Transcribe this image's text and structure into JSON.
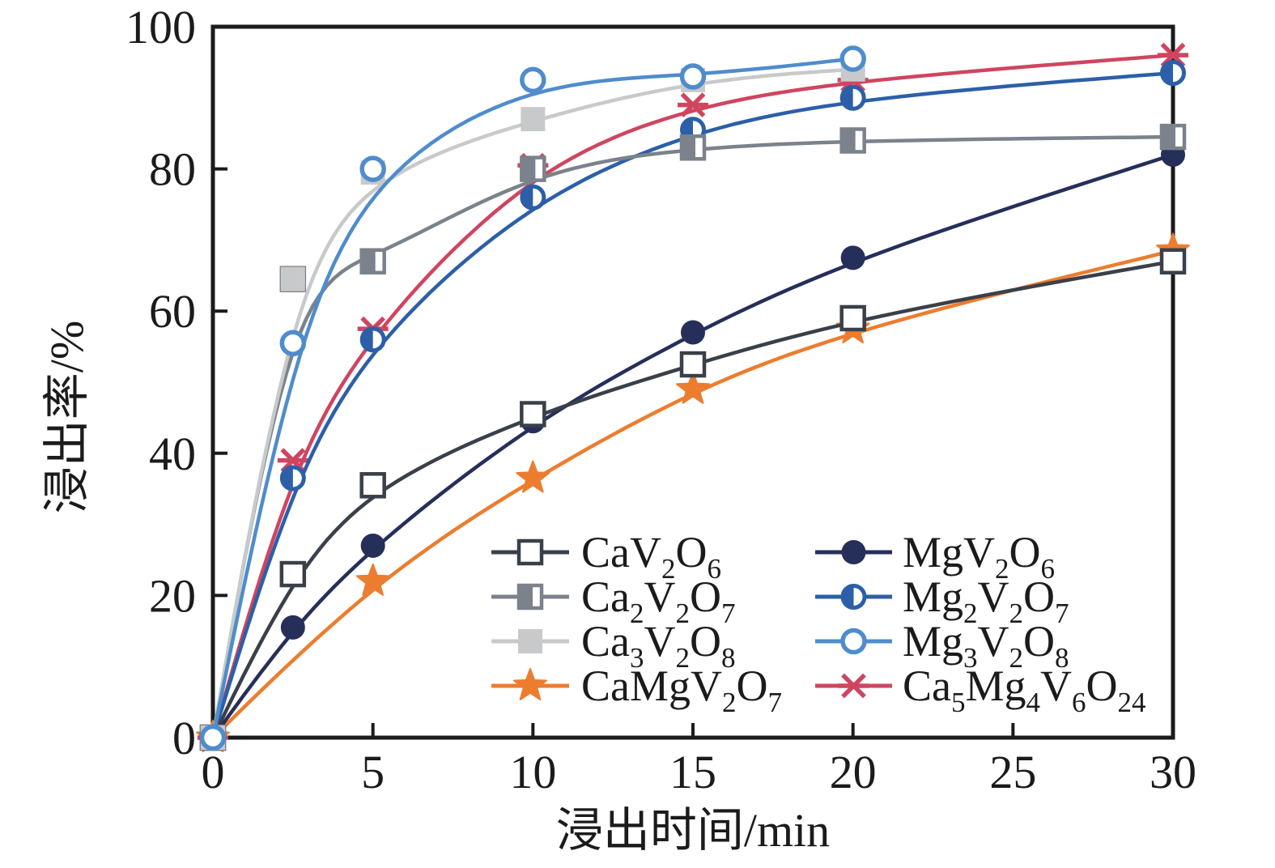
{
  "figure": {
    "background": "#ffffff",
    "frame_color": "#1b1b1b",
    "text_color": "#1b1b1b"
  },
  "axes": {
    "x": {
      "label": "浸出时间/min",
      "min": 0,
      "max": 30,
      "ticks": [
        "0",
        "5",
        "10",
        "15",
        "20",
        "25",
        "30"
      ]
    },
    "y": {
      "label": "浸出率/%",
      "min": 0,
      "max": 100,
      "ticks": [
        "0",
        "20",
        "40",
        "60",
        "80",
        "100"
      ]
    }
  },
  "chart_data": {
    "type": "line",
    "title": "",
    "xlabel": "浸出时间/min",
    "ylabel": "浸出率/%",
    "xlim": [
      0,
      30
    ],
    "ylim": [
      0,
      100
    ],
    "grid": false,
    "legend_position": "inside lower-right, two columns, no border",
    "x_tick_values": [
      0,
      5,
      10,
      15,
      20,
      25,
      30
    ],
    "y_tick_values": [
      0,
      20,
      40,
      60,
      80,
      100
    ],
    "series": [
      {
        "name": "CaV2O6",
        "formula": [
          [
            "CaV",
            0
          ],
          [
            "2",
            1
          ],
          [
            "O",
            0
          ],
          [
            "6",
            1
          ]
        ],
        "color": "#3a4049",
        "marker": "square-open",
        "x": [
          0,
          2.5,
          5,
          10,
          15,
          20,
          30
        ],
        "y": [
          0,
          23,
          35.5,
          45.5,
          52.5,
          59,
          67
        ]
      },
      {
        "name": "MgV2O6",
        "formula": [
          [
            "MgV",
            0
          ],
          [
            "2",
            1
          ],
          [
            "O",
            0
          ],
          [
            "6",
            1
          ]
        ],
        "color": "#262f5a",
        "marker": "circle-filled",
        "x": [
          0,
          2.5,
          5,
          10,
          15,
          20,
          30
        ],
        "y": [
          0,
          15.5,
          27,
          44.5,
          57,
          67.5,
          82
        ]
      },
      {
        "name": "Ca2V2O7",
        "formula": [
          [
            "Ca",
            0
          ],
          [
            "2",
            1
          ],
          [
            "V",
            0
          ],
          [
            "2",
            1
          ],
          [
            "O",
            0
          ],
          [
            "7",
            1
          ]
        ],
        "color": "#7b828b",
        "marker": "square-half",
        "x": [
          0,
          2.5,
          5,
          10,
          15,
          20,
          30
        ],
        "y": [
          0,
          64.5,
          67,
          80,
          83,
          84,
          84.5
        ]
      },
      {
        "name": "Mg2V2O7",
        "formula": [
          [
            "Mg",
            0
          ],
          [
            "2",
            1
          ],
          [
            "V",
            0
          ],
          [
            "2",
            1
          ],
          [
            "O",
            0
          ],
          [
            "7",
            1
          ]
        ],
        "color": "#2c5fa8",
        "marker": "circle-half",
        "x": [
          0,
          2.5,
          5,
          10,
          15,
          20,
          30
        ],
        "y": [
          0,
          36.5,
          56,
          76,
          85.5,
          90,
          93.5
        ]
      },
      {
        "name": "Ca3V2O8",
        "formula": [
          [
            "Ca",
            0
          ],
          [
            "3",
            1
          ],
          [
            "V",
            0
          ],
          [
            "2",
            1
          ],
          [
            "O",
            0
          ],
          [
            "8",
            1
          ]
        ],
        "color": "#c7c9ca",
        "marker": "square-filled",
        "x": [
          0,
          2.5,
          5,
          10,
          15,
          20
        ],
        "y": [
          0,
          64.5,
          79.5,
          87,
          92.5,
          94
        ]
      },
      {
        "name": "Mg3V2O8",
        "formula": [
          [
            "Mg",
            0
          ],
          [
            "3",
            1
          ],
          [
            "V",
            0
          ],
          [
            "2",
            1
          ],
          [
            "O",
            0
          ],
          [
            "8",
            1
          ]
        ],
        "color": "#4f8ccd",
        "marker": "circle-open",
        "x": [
          0,
          2.5,
          5,
          10,
          15,
          20
        ],
        "y": [
          0,
          55.5,
          80,
          92.5,
          93,
          95.5
        ]
      },
      {
        "name": "CaMgV2O7",
        "formula": [
          [
            "CaMgV",
            0
          ],
          [
            "2",
            1
          ],
          [
            "O",
            0
          ],
          [
            "7",
            1
          ]
        ],
        "color": "#ec7d2f",
        "marker": "star",
        "x": [
          0,
          5,
          10,
          15,
          20,
          30
        ],
        "y": [
          0,
          22,
          36.5,
          49,
          57.5,
          68.5
        ]
      },
      {
        "name": "Ca5Mg4V6O24",
        "formula": [
          [
            "Ca",
            0
          ],
          [
            "5",
            1
          ],
          [
            "Mg",
            0
          ],
          [
            "4",
            1
          ],
          [
            "V",
            0
          ],
          [
            "6",
            1
          ],
          [
            "O",
            0
          ],
          [
            "24",
            1
          ]
        ],
        "color": "#cf4560",
        "marker": "asterisk",
        "x": [
          0,
          2.5,
          5,
          10,
          15,
          20,
          30
        ],
        "y": [
          0,
          39,
          57.5,
          80.5,
          89,
          92.5,
          96
        ]
      }
    ],
    "draw_order": [
      "Ca5Mg4V6O24",
      "CaMgV2O7",
      "MgV2O6",
      "Mg2V2O7",
      "CaV2O6",
      "Ca2V2O7",
      "Ca3V2O8",
      "Mg3V2O8"
    ],
    "legend_rows": [
      [
        "CaV2O6",
        "MgV2O6"
      ],
      [
        "Ca2V2O7",
        "Mg2V2O7"
      ],
      [
        "Ca3V2O8",
        "Mg3V2O8"
      ],
      [
        "CaMgV2O7",
        "Ca5Mg4V6O24"
      ]
    ]
  }
}
